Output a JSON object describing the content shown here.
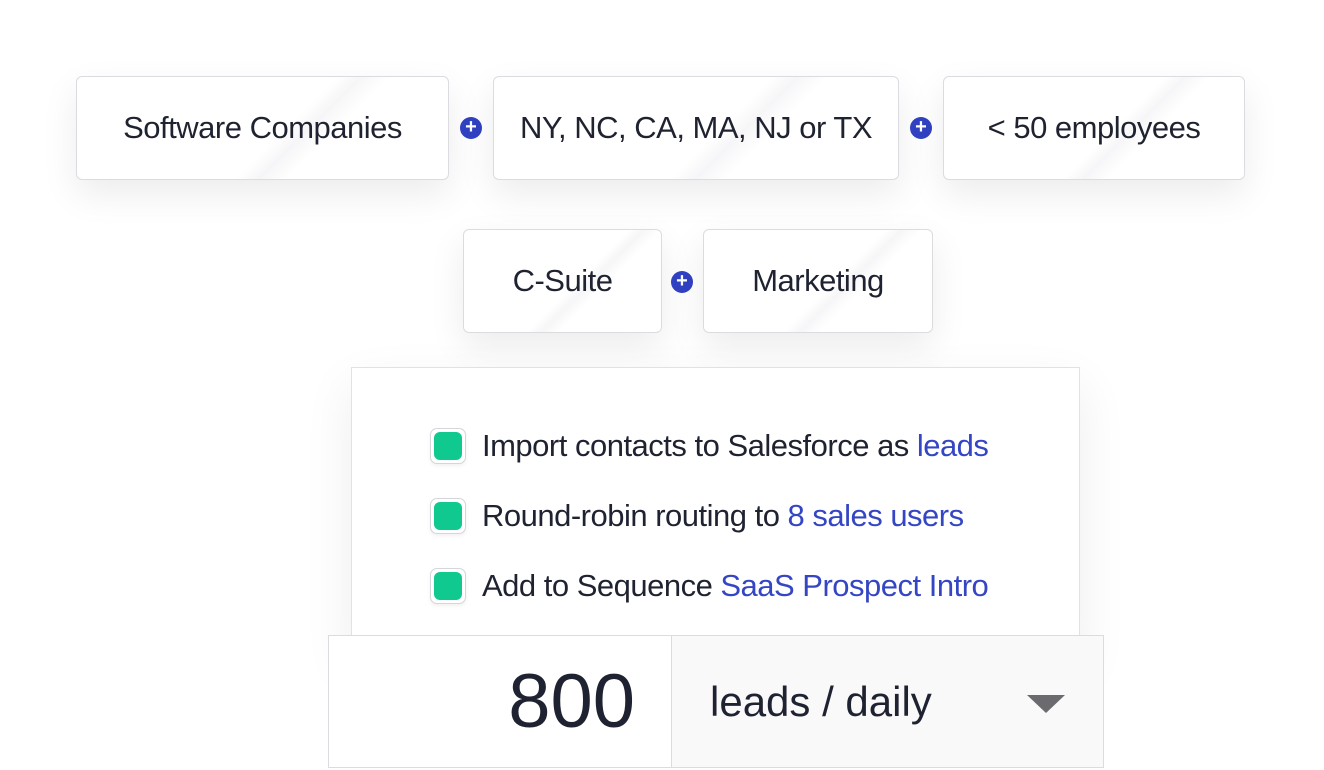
{
  "segments": {
    "row1": [
      "Software Companies",
      "NY, NC, CA, MA, NJ or TX",
      "< 50 employees"
    ],
    "row2": [
      "C-Suite",
      "Marketing"
    ]
  },
  "actions": [
    {
      "text": "Import contacts to Salesforce as",
      "link": "leads",
      "checked": true
    },
    {
      "text": "Round-robin routing to",
      "link": "8 sales users",
      "checked": true
    },
    {
      "text": "Add to Sequence",
      "link": "SaaS Prospect Intro",
      "checked": true
    }
  ],
  "volume": {
    "quantity": "800",
    "period": "leads / daily"
  },
  "colors": {
    "accent_blue": "#3041c2",
    "link_blue": "#3446c4",
    "check_green": "#10c98f"
  },
  "icons": {
    "connector": "plus-circle-icon",
    "dropdown": "caret-down-icon"
  }
}
